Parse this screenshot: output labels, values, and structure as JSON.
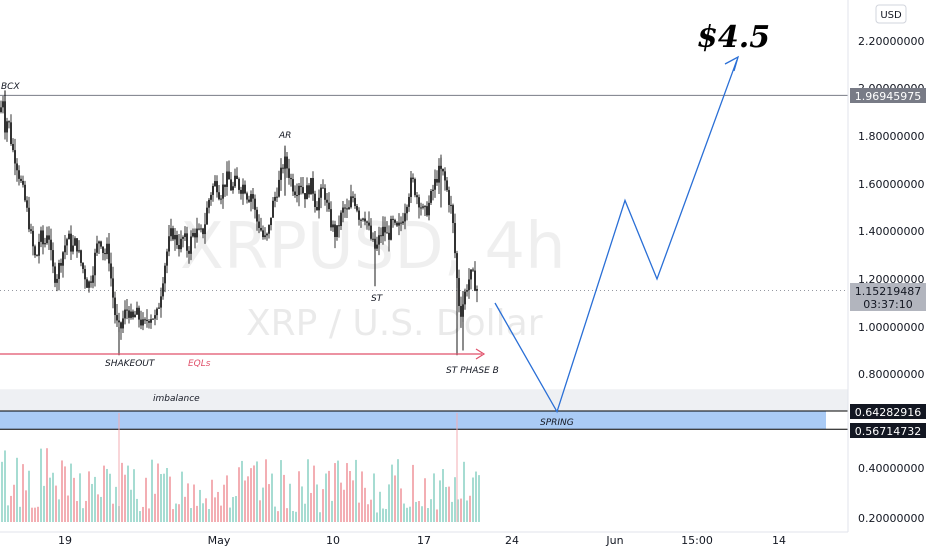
{
  "watermark": {
    "symbol": "XRPUSD, 4h",
    "description": "XRP / U.S. Dollar"
  },
  "currency_button": "USD",
  "annotations": {
    "target": "$4.5",
    "bcx": "BCX",
    "ar": "AR",
    "st": "ST",
    "shakeout": "SHAKEOUT",
    "eqls": "EQLs",
    "st_phase_b": "ST PHASE B",
    "imbalance": "imbalance",
    "spring": "SPRING"
  },
  "price_tags": {
    "bcx_level": "1.96945975",
    "current_price": "1.15219487",
    "countdown": "03:37:10",
    "zone_top": "0.64282916",
    "zone_bottom": "0.56714732"
  },
  "colors": {
    "candle": "#000000",
    "projection": "#2a6fd6",
    "eqls": "#e0506a",
    "zone_fill": "#aacbf5",
    "imbalance_fill": "#eef0f3",
    "vol_up": "#a6dcd2",
    "vol_down": "#f3aeb3"
  },
  "chart_data": {
    "type": "candlestick",
    "title": "",
    "y_axis_ticks": [
      "2.20000000",
      "2.00000000",
      "1.80000000",
      "1.60000000",
      "1.40000000",
      "1.20000000",
      "1.00000000",
      "0.80000000",
      "0.40000000",
      "0.20000000"
    ],
    "x_axis_ticks": [
      "19",
      "May",
      "10",
      "17",
      "24",
      "Jun",
      "15:00",
      "14"
    ],
    "ylim": [
      0.15,
      2.35
    ],
    "levels": {
      "bcx": 1.96945975,
      "current": 1.15219487,
      "zone_top": 0.64282916,
      "zone_bottom": 0.56714732,
      "eqls": 0.88
    },
    "price_path": [
      [
        0,
        1.9
      ],
      [
        3,
        1.96
      ],
      [
        5,
        1.84
      ],
      [
        8,
        1.88
      ],
      [
        12,
        1.75
      ],
      [
        16,
        1.7
      ],
      [
        20,
        1.62
      ],
      [
        24,
        1.55
      ],
      [
        28,
        1.46
      ],
      [
        32,
        1.35
      ],
      [
        36,
        1.27
      ],
      [
        40,
        1.39
      ],
      [
        44,
        1.33
      ],
      [
        48,
        1.42
      ],
      [
        52,
        1.25
      ],
      [
        56,
        1.2
      ],
      [
        60,
        1.27
      ],
      [
        64,
        1.33
      ],
      [
        68,
        1.38
      ],
      [
        72,
        1.32
      ],
      [
        76,
        1.36
      ],
      [
        80,
        1.28
      ],
      [
        84,
        1.23
      ],
      [
        88,
        1.17
      ],
      [
        92,
        1.22
      ],
      [
        96,
        1.32
      ],
      [
        100,
        1.38
      ],
      [
        104,
        1.3
      ],
      [
        108,
        1.33
      ],
      [
        112,
        1.16
      ],
      [
        116,
        1.02
      ],
      [
        120,
        0.98
      ],
      [
        124,
        1.05
      ],
      [
        128,
        1.08
      ],
      [
        132,
        1.02
      ],
      [
        136,
        1.06
      ],
      [
        140,
        1.03
      ],
      [
        144,
        1.0
      ],
      [
        148,
        1.04
      ],
      [
        152,
        1.05
      ],
      [
        156,
        1.03
      ],
      [
        160,
        1.12
      ],
      [
        164,
        1.24
      ],
      [
        168,
        1.34
      ],
      [
        172,
        1.4
      ],
      [
        176,
        1.36
      ],
      [
        180,
        1.34
      ],
      [
        184,
        1.38
      ],
      [
        188,
        1.31
      ],
      [
        192,
        1.38
      ],
      [
        196,
        1.4
      ],
      [
        200,
        1.38
      ],
      [
        204,
        1.41
      ],
      [
        208,
        1.52
      ],
      [
        212,
        1.58
      ],
      [
        216,
        1.61
      ],
      [
        220,
        1.55
      ],
      [
        224,
        1.6
      ],
      [
        228,
        1.63
      ],
      [
        232,
        1.57
      ],
      [
        236,
        1.62
      ],
      [
        240,
        1.58
      ],
      [
        244,
        1.6
      ],
      [
        248,
        1.54
      ],
      [
        252,
        1.57
      ],
      [
        256,
        1.45
      ],
      [
        260,
        1.42
      ],
      [
        264,
        1.36
      ],
      [
        268,
        1.38
      ],
      [
        272,
        1.5
      ],
      [
        276,
        1.56
      ],
      [
        280,
        1.62
      ],
      [
        284,
        1.7
      ],
      [
        288,
        1.66
      ],
      [
        292,
        1.6
      ],
      [
        296,
        1.57
      ],
      [
        300,
        1.62
      ],
      [
        304,
        1.55
      ],
      [
        308,
        1.58
      ],
      [
        312,
        1.6
      ],
      [
        316,
        1.5
      ],
      [
        320,
        1.55
      ],
      [
        324,
        1.58
      ],
      [
        328,
        1.48
      ],
      [
        332,
        1.42
      ],
      [
        336,
        1.38
      ],
      [
        340,
        1.45
      ],
      [
        344,
        1.5
      ],
      [
        348,
        1.47
      ],
      [
        352,
        1.55
      ],
      [
        356,
        1.52
      ],
      [
        360,
        1.45
      ],
      [
        364,
        1.48
      ],
      [
        368,
        1.42
      ],
      [
        372,
        1.35
      ],
      [
        376,
        1.32
      ],
      [
        380,
        1.38
      ],
      [
        384,
        1.41
      ],
      [
        388,
        1.37
      ],
      [
        392,
        1.44
      ],
      [
        396,
        1.4
      ],
      [
        400,
        1.42
      ],
      [
        404,
        1.48
      ],
      [
        408,
        1.55
      ],
      [
        412,
        1.62
      ],
      [
        416,
        1.56
      ],
      [
        420,
        1.52
      ],
      [
        424,
        1.47
      ],
      [
        428,
        1.5
      ],
      [
        432,
        1.56
      ],
      [
        436,
        1.62
      ],
      [
        440,
        1.66
      ],
      [
        444,
        1.63
      ],
      [
        448,
        1.55
      ],
      [
        452,
        1.48
      ],
      [
        456,
        1.25
      ],
      [
        460,
        1.05
      ],
      [
        463,
        1.1
      ],
      [
        466,
        1.16
      ],
      [
        469,
        1.2
      ],
      [
        472,
        1.22
      ],
      [
        475,
        1.18
      ],
      [
        478,
        1.15
      ]
    ],
    "projection_path": [
      [
        495,
        1.1
      ],
      [
        557,
        0.64
      ],
      [
        625,
        1.53
      ],
      [
        657,
        1.2
      ],
      [
        737,
        2.12
      ]
    ],
    "volume_bars": {
      "count": 160,
      "note_spikes": [
        "SHAKEOUT",
        "ST PHASE B"
      ]
    }
  }
}
